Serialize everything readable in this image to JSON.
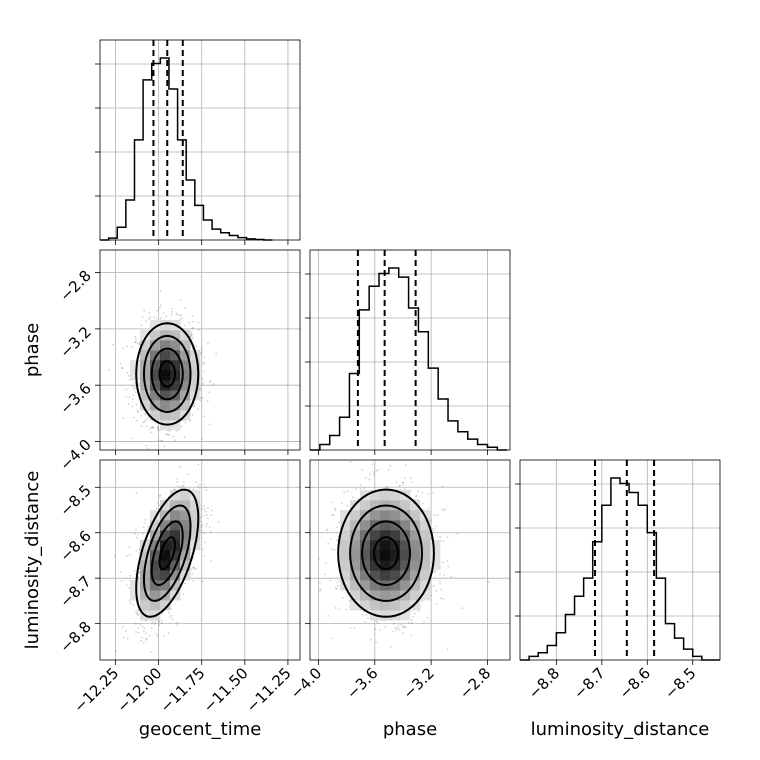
{
  "chart_data": {
    "type": "corner",
    "parameters": [
      "geocent_time",
      "phase",
      "luminosity_distance"
    ],
    "axis_labels": {
      "geocent_time": "geocent_time",
      "phase": "phase",
      "luminosity_distance": "luminosity_distance"
    },
    "ranges": {
      "geocent_time": [
        -12.34,
        -11.18
      ],
      "phase": [
        -4.06,
        -2.64
      ],
      "luminosity_distance": [
        -8.88,
        -8.44
      ]
    },
    "ticks": {
      "geocent_time": {
        "values": [
          -12.25,
          -12.0,
          -11.75,
          -11.5,
          -11.25
        ],
        "labels": [
          "−12.25",
          "−12.00",
          "−11.75",
          "−11.50",
          "−11.25"
        ]
      },
      "phase": {
        "values": [
          -4.0,
          -3.6,
          -3.2,
          -2.8
        ],
        "labels": [
          "−4.0",
          "−3.6",
          "−3.2",
          "−2.8"
        ]
      },
      "luminosity_distance": {
        "values": [
          -8.8,
          -8.7,
          -8.6,
          -8.5
        ],
        "labels": [
          "−8.8",
          "−8.7",
          "−8.6",
          "−8.5"
        ]
      }
    },
    "histograms": {
      "geocent_time": {
        "edges": [
          -12.34,
          -12.29,
          -12.24,
          -12.19,
          -12.14,
          -12.09,
          -12.04,
          -11.99,
          -11.94,
          -11.89,
          -11.84,
          -11.79,
          -11.74,
          -11.69,
          -11.64,
          -11.59,
          -11.54,
          -11.49,
          -11.44,
          -11.39,
          -11.34
        ],
        "counts": [
          0.0,
          0.01,
          0.07,
          0.22,
          0.55,
          0.88,
          0.97,
          1.0,
          0.83,
          0.55,
          0.33,
          0.19,
          0.11,
          0.06,
          0.04,
          0.025,
          0.013,
          0.006,
          0.003,
          0.0
        ],
        "quantiles": [
          -12.03,
          -11.95,
          -11.86
        ]
      },
      "phase": {
        "edges": [
          -4.06,
          -3.99,
          -3.92,
          -3.85,
          -3.78,
          -3.71,
          -3.64,
          -3.57,
          -3.5,
          -3.43,
          -3.36,
          -3.29,
          -3.22,
          -3.15,
          -3.08,
          -3.01,
          -2.94,
          -2.87,
          -2.8,
          -2.73,
          -2.66
        ],
        "counts": [
          0.0,
          0.03,
          0.08,
          0.18,
          0.42,
          0.77,
          0.9,
          0.97,
          1.0,
          0.95,
          0.78,
          0.65,
          0.45,
          0.28,
          0.16,
          0.1,
          0.06,
          0.03,
          0.015,
          0.0
        ],
        "quantiles": [
          -3.72,
          -3.53,
          -3.31
        ]
      },
      "luminosity_distance": {
        "edges": [
          -8.88,
          -8.86,
          -8.84,
          -8.82,
          -8.8,
          -8.78,
          -8.76,
          -8.74,
          -8.72,
          -8.7,
          -8.68,
          -8.66,
          -8.64,
          -8.62,
          -8.6,
          -8.58,
          -8.56,
          -8.54,
          -8.52,
          -8.5,
          -8.48,
          -8.46,
          -8.44
        ],
        "counts": [
          0.0,
          0.02,
          0.04,
          0.08,
          0.15,
          0.25,
          0.35,
          0.45,
          0.65,
          0.85,
          1.0,
          0.97,
          0.92,
          0.85,
          0.7,
          0.45,
          0.2,
          0.12,
          0.06,
          0.02,
          0.0,
          0.0
        ],
        "quantiles": [
          -8.715,
          -8.645,
          -8.585
        ]
      }
    },
    "joint": [
      {
        "x": "geocent_time",
        "y": "phase",
        "mean": [
          -11.95,
          -3.52
        ],
        "sd": [
          0.09,
          0.18
        ],
        "rho": 0.0
      },
      {
        "x": "geocent_time",
        "y": "luminosity_distance",
        "mean": [
          -11.95,
          -8.645
        ],
        "sd": [
          0.09,
          0.07
        ],
        "rho": 0.55
      },
      {
        "x": "phase",
        "y": "luminosity_distance",
        "mean": [
          -3.52,
          -8.645
        ],
        "sd": [
          0.17,
          0.07
        ],
        "rho": 0.0
      }
    ],
    "contour_levels_sigma": [
      0.5,
      1.0,
      1.5,
      2.0
    ],
    "grid": true
  }
}
